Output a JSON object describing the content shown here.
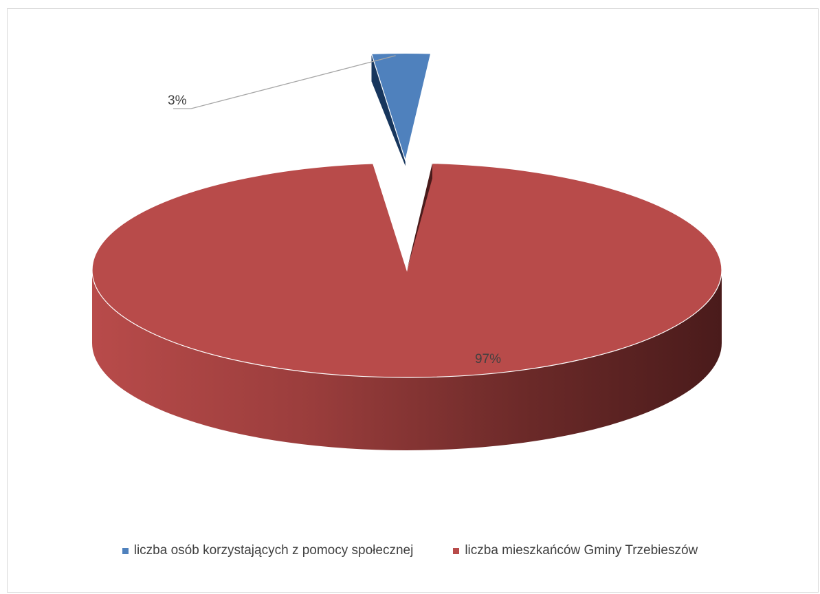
{
  "chart_data": {
    "type": "pie",
    "style": "3d-exploded",
    "title": "",
    "categories": [
      "liczba osób korzystających z pomocy społecznej",
      "liczba mieszkańców Gminy Trzebieszów"
    ],
    "values": [
      3,
      97
    ],
    "data_labels": [
      "3%",
      "97%"
    ],
    "colors": [
      "#4f81bd",
      "#b84b4a"
    ],
    "legend_position": "bottom"
  },
  "legend": {
    "items": [
      {
        "label": "liczba osób korzystających z pomocy społecznej",
        "color": "#4f81bd"
      },
      {
        "label": "liczba mieszkańców Gminy Trzebieszów",
        "color": "#b84b4a"
      }
    ]
  }
}
